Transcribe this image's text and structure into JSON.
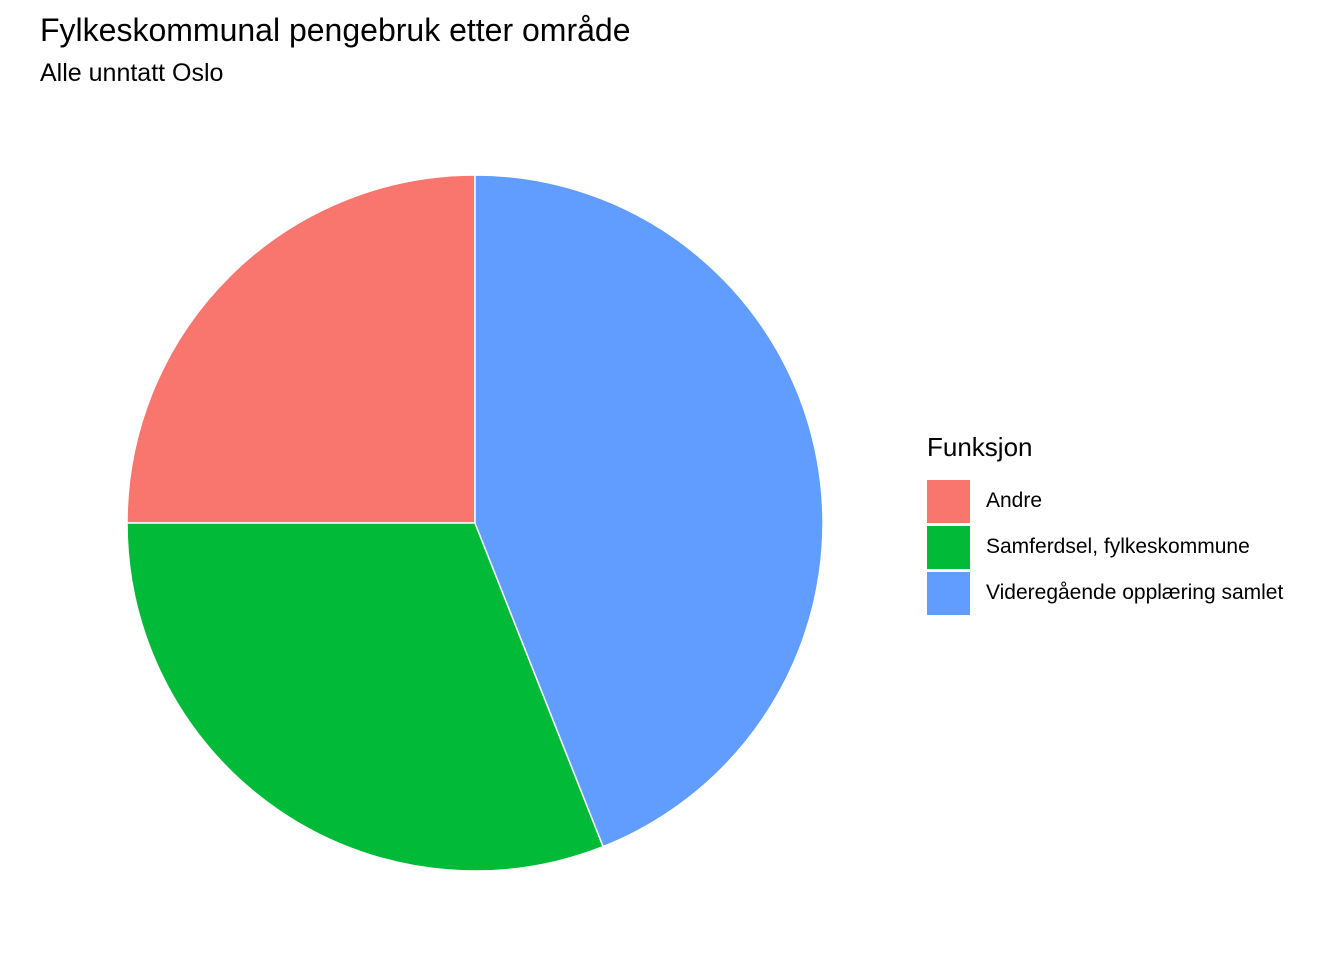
{
  "chart_data": {
    "type": "pie",
    "title": "Fylkeskommunal pengebruk etter område",
    "subtitle": "Alle unntatt Oslo",
    "legend": {
      "title": "Funksjon",
      "position": "right"
    },
    "slices": [
      {
        "label": "Andre",
        "value": 25.0,
        "color": "#F8766D"
      },
      {
        "label": "Samferdsel, fylkeskommune",
        "value": 31.0,
        "color": "#00BA38"
      },
      {
        "label": "Videregående opplæring samlet",
        "value": 44.0,
        "color": "#619CFF"
      }
    ]
  }
}
